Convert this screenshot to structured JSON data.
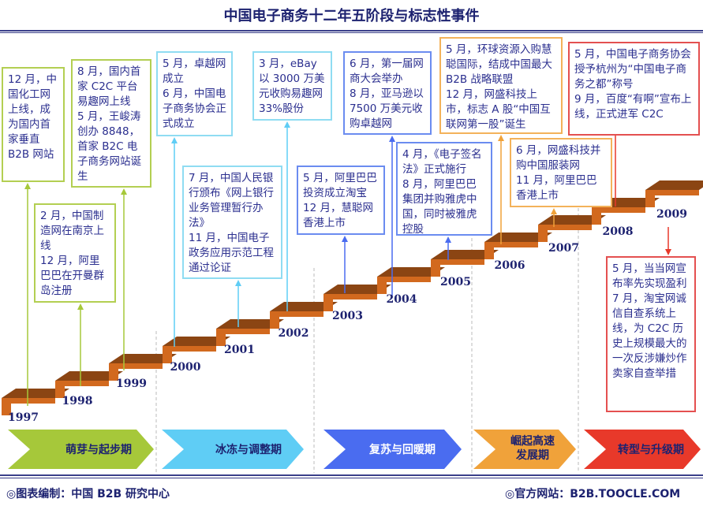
{
  "title": "中国电子商务十二年五阶段与标志性事件",
  "colors": {
    "green": "#a6c83a",
    "cyan": "#5fcdf5",
    "blue": "#4a6cf0",
    "orange": "#f0a23a",
    "red": "#e8392a",
    "step_top": "#8b4513",
    "step_front": "#d2691e"
  },
  "years": [
    "1997",
    "1998",
    "1999",
    "2000",
    "2001",
    "2002",
    "2003",
    "2004",
    "2005",
    "2006",
    "2007",
    "2008",
    "2009"
  ],
  "events": [
    {
      "text": "12 月，中国化工网上线，成为国内首家垂直 B2B 网站"
    },
    {
      "text": "8 月，国内首家 C2C 平台易趣网上线\n5 月，王峻涛创办 8848，首家 B2C 电子商务网站诞生"
    },
    {
      "text": "2 月，中国制造网在南京上线\n12 月，阿里巴巴在开曼群岛注册"
    },
    {
      "text": "5 月，卓越网成立\n6 月，中国电子商务协会正式成立"
    },
    {
      "text": "7 月，中国人民银行颁布《网上银行业务管理暂行办法》\n11 月，中国电子政务应用示范工程通过论证"
    },
    {
      "text": "3 月，eBay 以 3000 万美元收购易趣网 33%股份"
    },
    {
      "text": "6 月，第一届网商大会举办\n8 月，亚马逊以 7500 万美元收购卓越网"
    },
    {
      "text": "5 月，阿里巴巴投资成立淘宝\n12 月，慧聪网香港上市"
    },
    {
      "text": "4 月，《电子签名法》正式施行\n8 月，阿里巴巴集团并购雅虎中国，同时被雅虎控股"
    },
    {
      "text": "5 月，环球资源入购慧聪国际，结成中国最大 B2B 战略联盟\n12 月，网盛科技上市，标志 A 股“中国互联网第一股”诞生"
    },
    {
      "text": "6 月，网盛科技并购中国服装网\n11 月，阿里巴巴香港上市"
    },
    {
      "text": "5 月，中国电子商务协会授予杭州为“中国电子商务之都”称号\n9 月，百度“有啊”宣布上线，正式进军 C2C"
    },
    {
      "text": "5 月，当当网宣布率先实现盈利\n7 月，淘宝网诚信自查系统上线，为 C2C 历史上规模最大的一次反涉嫌炒作卖家自查举措"
    }
  ],
  "phases": [
    "萌芽与起步期",
    "冰冻与调整期",
    "复苏与回暖期",
    "崛起高速\n发展期",
    "转型与升级期"
  ],
  "footer": {
    "left": "◎图表编制：中国 B2B 研究中心",
    "right": "◎官方网站：B2B.TOOCLE.COM"
  }
}
